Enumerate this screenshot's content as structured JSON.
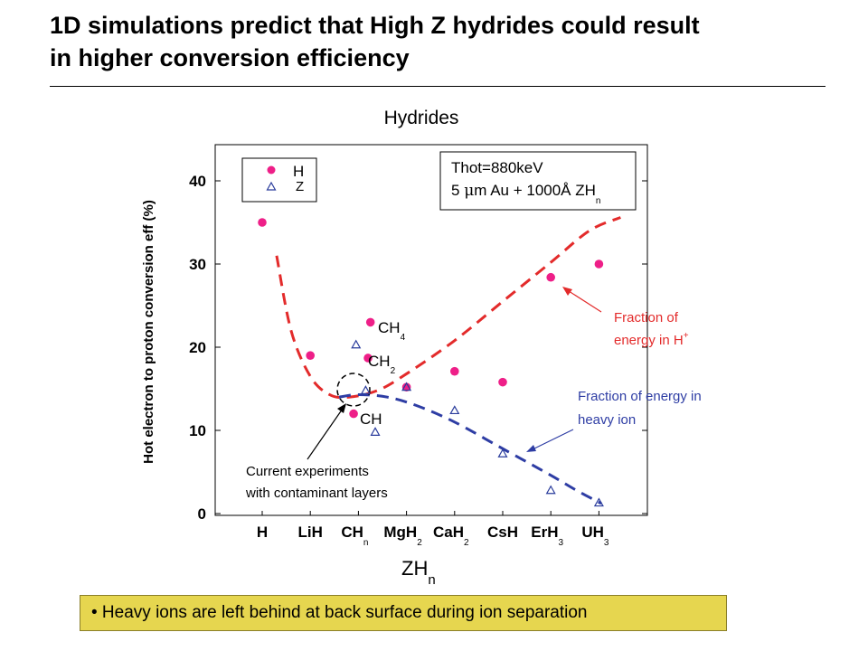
{
  "slide": {
    "title_line1": "1D simulations predict that High Z hydrides could result",
    "title_line2": "in higher conversion efficiency",
    "note": "• Heavy ions are left behind at back surface during ion separation"
  },
  "chart_data": {
    "type": "scatter",
    "title": "Hydrides",
    "ylabel": "Hot electron to proton conversion eff (%)",
    "xlabel": {
      "main": "ZH",
      "sub": "n"
    },
    "ylim": [
      0,
      43
    ],
    "yticks": [
      "0",
      "10",
      "20",
      "30",
      "40"
    ],
    "ytick_values": [
      0,
      10,
      20,
      30,
      40
    ],
    "categories": [
      {
        "main": "H",
        "sub": ""
      },
      {
        "main": "LiH",
        "sub": ""
      },
      {
        "main": "CH",
        "sub": "n"
      },
      {
        "main": "MgH",
        "sub": "2"
      },
      {
        "main": "CaH",
        "sub": "2"
      },
      {
        "main": "CsH",
        "sub": ""
      },
      {
        "main": "ErH",
        "sub": "3"
      },
      {
        "main": "UH",
        "sub": "3"
      }
    ],
    "legend": {
      "position": "top-left",
      "entries": [
        "H",
        "Z"
      ]
    },
    "colors": {
      "H": "#ee1f88",
      "Z": "#2a3c9c",
      "H_curve": "#e32b2b",
      "Z_curve": "#2e3da4",
      "note_bg": "#e6d64f"
    },
    "series": [
      {
        "name": "H",
        "marker": "circle",
        "points": [
          {
            "x": 0.0,
            "y": 35.0
          },
          {
            "x": 1.0,
            "y": 19.0
          },
          {
            "x": 1.9,
            "y": 12.0
          },
          {
            "x": 2.2,
            "y": 18.7
          },
          {
            "x": 2.25,
            "y": 23.0
          },
          {
            "x": 3.0,
            "y": 15.2
          },
          {
            "x": 4.0,
            "y": 17.1
          },
          {
            "x": 5.0,
            "y": 15.8
          },
          {
            "x": 6.0,
            "y": 28.4
          },
          {
            "x": 7.0,
            "y": 30.0
          }
        ]
      },
      {
        "name": "Z",
        "marker": "triangle",
        "points": [
          {
            "x": 1.95,
            "y": 20.3
          },
          {
            "x": 2.15,
            "y": 14.8
          },
          {
            "x": 2.35,
            "y": 9.8
          },
          {
            "x": 3.0,
            "y": 15.2
          },
          {
            "x": 4.0,
            "y": 12.4
          },
          {
            "x": 5.0,
            "y": 7.2
          },
          {
            "x": 6.0,
            "y": 2.8
          },
          {
            "x": 7.0,
            "y": 1.3
          }
        ]
      }
    ],
    "curves": [
      {
        "name": "Fraction of energy in H+",
        "points": [
          [
            0.3,
            31
          ],
          [
            0.6,
            22
          ],
          [
            1.0,
            16.5
          ],
          [
            1.4,
            14.3
          ],
          [
            1.8,
            14.0
          ],
          [
            2.4,
            14.8
          ],
          [
            3.0,
            16.8
          ],
          [
            4.0,
            20.8
          ],
          [
            5.0,
            25.5
          ],
          [
            6.0,
            30.2
          ],
          [
            6.8,
            34.0
          ],
          [
            7.45,
            35.6
          ]
        ]
      },
      {
        "name": "Fraction of energy in heavy ion",
        "points": [
          [
            1.6,
            14.0
          ],
          [
            2.0,
            14.3
          ],
          [
            2.6,
            14.0
          ],
          [
            3.2,
            13.0
          ],
          [
            4.0,
            11.0
          ],
          [
            5.0,
            7.8
          ],
          [
            6.0,
            4.6
          ],
          [
            6.5,
            2.9
          ],
          [
            7.05,
            1.2
          ]
        ]
      }
    ],
    "annotations": {
      "params_line1": "Thot=880keV",
      "params_line2a": "5 ",
      "params_mu": "μ",
      "params_line2b": "m Au + 1000Å ZH",
      "params_sub": "n",
      "ch4_main": "CH",
      "ch4_sub": "4",
      "ch2_main": "CH",
      "ch2_sub": "2",
      "ch_main": "CH",
      "fraction_h_line1": "Fraction of",
      "fraction_h_line2": "energy in H",
      "fraction_h_sup": "+",
      "fraction_z_line1": "Fraction of energy in",
      "fraction_z_line2": "heavy ion",
      "current_line1": "Current experiments",
      "current_line2": "with contaminant layers"
    }
  }
}
